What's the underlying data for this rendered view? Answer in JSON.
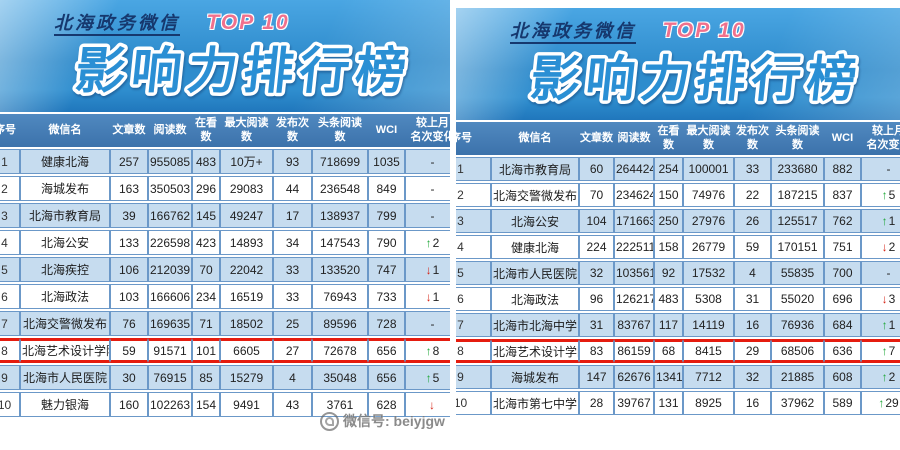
{
  "banner": {
    "title": "北海政务微信",
    "badge": "TOP 10",
    "subtitle": "影响力排行榜"
  },
  "watermark": {
    "icon": "wechat-logo-icon",
    "text": "微信号: beiyjgw"
  },
  "colors": {
    "banner_blue": "#2d8acb",
    "header_blue": "#3c72ab",
    "row_light_blue": "#c6dcef",
    "grid_blue": "#6b98c8",
    "highlight_red": "#e51c0f",
    "badge_pink": "#f0718d",
    "arrow_up_green": "#21a83a",
    "arrow_down_red": "#d6281a",
    "banner_title_navy": "#16386e"
  },
  "chart_data": [
    {
      "type": "table",
      "title": "北海政务微信 TOP 10 影响力排行榜（左表）",
      "columns": [
        "序号",
        "微信名",
        "文章数",
        "阅读数",
        "在看数",
        "最大阅读数",
        "发布次数",
        "头条阅读数",
        "WCI",
        "较上月\n名次变化"
      ],
      "highlight_row": 8,
      "rows": [
        [
          "1",
          "健康北海",
          "257",
          "955085",
          "483",
          "10万+",
          "93",
          "718699",
          "1035",
          "-"
        ],
        [
          "2",
          "海城发布",
          "163",
          "350503",
          "296",
          "29083",
          "44",
          "236548",
          "849",
          "-"
        ],
        [
          "3",
          "北海市教育局",
          "39",
          "166762",
          "145",
          "49247",
          "17",
          "138937",
          "799",
          "-"
        ],
        [
          "4",
          "北海公安",
          "133",
          "226598",
          "423",
          "14893",
          "34",
          "147543",
          "790",
          "↑2"
        ],
        [
          "5",
          "北海疾控",
          "106",
          "212039",
          "70",
          "22042",
          "33",
          "133520",
          "747",
          "↓1"
        ],
        [
          "6",
          "北海政法",
          "103",
          "166606",
          "234",
          "16519",
          "33",
          "76943",
          "733",
          "↓1"
        ],
        [
          "7",
          "北海交警微发布",
          "76",
          "169635",
          "71",
          "18502",
          "25",
          "89596",
          "728",
          "-"
        ],
        [
          "8",
          "北海艺术设计学院",
          "59",
          "91571",
          "101",
          "6605",
          "27",
          "72678",
          "656",
          "↑8"
        ],
        [
          "9",
          "北海市人民医院",
          "30",
          "76915",
          "85",
          "15279",
          "4",
          "35048",
          "656",
          "↑5"
        ],
        [
          "10",
          "魅力银海",
          "160",
          "102263",
          "154",
          "9491",
          "43",
          "3761",
          "628",
          "↓"
        ]
      ]
    },
    {
      "type": "table",
      "title": "北海政务微信 TOP 10 影响力排行榜（右表）",
      "columns": [
        "序号",
        "微信名",
        "文章数",
        "阅读数",
        "在看数",
        "最大阅读数",
        "发布次数",
        "头条阅读数",
        "WCI",
        "较上月\n名次变化"
      ],
      "highlight_row": 8,
      "rows": [
        [
          "1",
          "北海市教育局",
          "60",
          "264424",
          "254",
          "100001",
          "33",
          "233680",
          "882",
          "-"
        ],
        [
          "2",
          "北海交警微发布",
          "70",
          "234624",
          "150",
          "74976",
          "22",
          "187215",
          "837",
          "↑5"
        ],
        [
          "3",
          "北海公安",
          "104",
          "171663",
          "250",
          "27976",
          "26",
          "125517",
          "762",
          "↑1"
        ],
        [
          "4",
          "健康北海",
          "224",
          "222511",
          "158",
          "26779",
          "59",
          "170151",
          "751",
          "↓2"
        ],
        [
          "5",
          "北海市人民医院",
          "32",
          "103561",
          "92",
          "17532",
          "4",
          "55835",
          "700",
          "-"
        ],
        [
          "6",
          "北海政法",
          "96",
          "126217",
          "483",
          "5308",
          "31",
          "55020",
          "696",
          "↓3"
        ],
        [
          "7",
          "北海市北海中学",
          "31",
          "83767",
          "117",
          "14119",
          "16",
          "76936",
          "684",
          "↑1"
        ],
        [
          "8",
          "北海艺术设计学院",
          "83",
          "86159",
          "68",
          "8415",
          "29",
          "68506",
          "636",
          "↑7"
        ],
        [
          "9",
          "海城发布",
          "147",
          "62676",
          "1341",
          "7712",
          "32",
          "21885",
          "608",
          "↑2"
        ],
        [
          "10",
          "北海市第七中学",
          "28",
          "39767",
          "131",
          "8925",
          "16",
          "37962",
          "589",
          "↑29"
        ]
      ]
    }
  ]
}
